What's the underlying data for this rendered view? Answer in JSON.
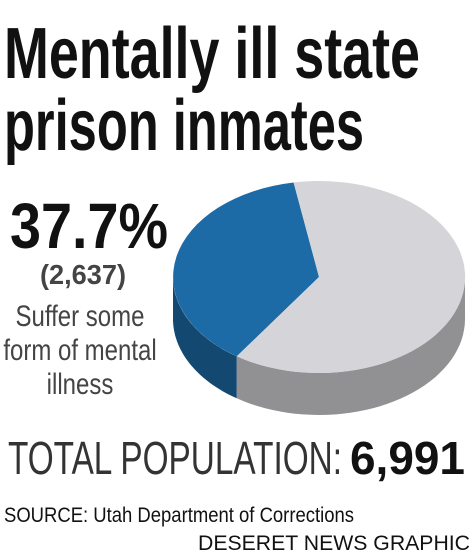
{
  "chart_data": {
    "type": "pie",
    "title": [
      "Mentally ill state",
      "prison inmates"
    ],
    "categories": [
      "Suffer some form of mental illness",
      null
    ],
    "values": [
      37.7,
      62.3
    ],
    "value_labels": [
      "37.7%",
      null
    ],
    "colors": [
      "#1c6aa6",
      "#d5d5d9"
    ],
    "count": {
      "value": 2637,
      "label": "(2,637)"
    },
    "total": {
      "label": "TOTAL POPULATION:",
      "value": 6991,
      "value_label": "6,991"
    },
    "source": "SOURCE: Utah Department of Corrections",
    "credit": "DESERET NEWS GRAPHIC"
  }
}
